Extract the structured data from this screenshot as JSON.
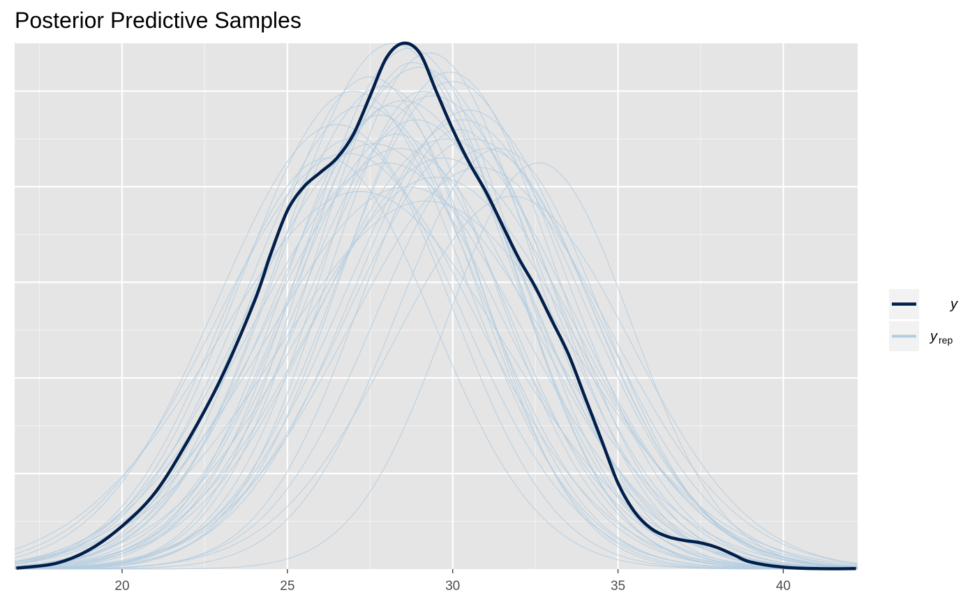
{
  "chart_data": {
    "type": "area",
    "title": "Posterior Predictive Samples",
    "xlabel": "",
    "ylabel": "",
    "xlim": [
      16.75,
      42.25
    ],
    "ylim": [
      0,
      1.1
    ],
    "x_ticks": [
      20,
      25,
      30,
      35,
      40
    ],
    "x_tick_labels": [
      "20",
      "25",
      "30",
      "35",
      "40"
    ],
    "y_axis_labels_shown": false,
    "grid": true,
    "legend_position": "right",
    "legend": [
      {
        "key": "y",
        "label": "y",
        "subscript": "",
        "color": "#011f4b"
      },
      {
        "key": "yrep",
        "label": "y",
        "subscript": "rep",
        "color": "#b3cde0"
      }
    ],
    "observed": {
      "name": "y",
      "color": "#011f4b",
      "x": [
        16.8,
        18,
        19,
        20,
        21,
        22,
        23,
        24,
        24.5,
        25,
        25.5,
        26,
        26.5,
        27,
        27.5,
        28,
        28.5,
        29,
        29.5,
        30,
        30.5,
        31,
        31.5,
        32,
        32.5,
        33,
        33.5,
        34,
        34.5,
        35,
        35.5,
        36,
        36.5,
        37,
        37.5,
        38,
        38.5,
        39,
        40,
        41,
        42.2
      ],
      "y": [
        0.002,
        0.012,
        0.04,
        0.09,
        0.16,
        0.27,
        0.4,
        0.56,
        0.66,
        0.75,
        0.8,
        0.83,
        0.86,
        0.91,
        0.99,
        1.07,
        1.1,
        1.08,
        1.0,
        0.92,
        0.85,
        0.79,
        0.72,
        0.65,
        0.59,
        0.52,
        0.45,
        0.36,
        0.27,
        0.18,
        0.12,
        0.085,
        0.068,
        0.06,
        0.055,
        0.045,
        0.03,
        0.015,
        0.004,
        0.001,
        0.001
      ]
    },
    "replicates_color": "#b3cde0",
    "replicates": [
      {
        "peak": 28.2,
        "sd": 3.4,
        "height": 1.1
      },
      {
        "peak": 29.0,
        "sd": 3.6,
        "height": 1.05
      },
      {
        "peak": 27.5,
        "sd": 3.2,
        "height": 1.03
      },
      {
        "peak": 30.5,
        "sd": 3.5,
        "height": 0.96
      },
      {
        "peak": 28.8,
        "sd": 3.0,
        "height": 1.06
      },
      {
        "peak": 27.0,
        "sd": 3.4,
        "height": 1.0
      },
      {
        "peak": 29.8,
        "sd": 3.8,
        "height": 0.9
      },
      {
        "peak": 28.0,
        "sd": 4.0,
        "height": 0.85
      },
      {
        "peak": 26.5,
        "sd": 3.6,
        "height": 0.93
      },
      {
        "peak": 31.0,
        "sd": 3.3,
        "height": 0.88
      },
      {
        "peak": 29.3,
        "sd": 3.1,
        "height": 1.08
      },
      {
        "peak": 28.5,
        "sd": 3.7,
        "height": 0.98
      },
      {
        "peak": 27.8,
        "sd": 3.0,
        "height": 0.95
      },
      {
        "peak": 30.0,
        "sd": 3.4,
        "height": 1.02
      },
      {
        "peak": 29.5,
        "sd": 4.1,
        "height": 0.82
      },
      {
        "peak": 28.3,
        "sd": 3.3,
        "height": 0.91
      },
      {
        "peak": 26.8,
        "sd": 3.9,
        "height": 0.87
      },
      {
        "peak": 30.8,
        "sd": 3.9,
        "height": 0.84
      },
      {
        "peak": 29.1,
        "sd": 2.9,
        "height": 1.0
      },
      {
        "peak": 27.3,
        "sd": 3.5,
        "height": 0.97
      },
      {
        "peak": 31.8,
        "sd": 3.6,
        "height": 0.78
      },
      {
        "peak": 28.9,
        "sd": 3.5,
        "height": 0.94
      },
      {
        "peak": 29.9,
        "sd": 3.2,
        "height": 1.04
      },
      {
        "peak": 27.6,
        "sd": 3.8,
        "height": 0.89
      },
      {
        "peak": 30.2,
        "sd": 3.0,
        "height": 0.92
      },
      {
        "peak": 28.6,
        "sd": 4.2,
        "height": 0.8
      },
      {
        "peak": 26.2,
        "sd": 3.2,
        "height": 0.86
      },
      {
        "peak": 29.4,
        "sd": 3.6,
        "height": 0.99
      },
      {
        "peak": 32.6,
        "sd": 2.8,
        "height": 0.85
      },
      {
        "peak": 27.9,
        "sd": 3.3,
        "height": 1.01
      },
      {
        "peak": 30.6,
        "sd": 3.7,
        "height": 0.9
      },
      {
        "peak": 28.1,
        "sd": 2.8,
        "height": 0.97
      },
      {
        "peak": 29.7,
        "sd": 3.9,
        "height": 0.86
      },
      {
        "peak": 27.2,
        "sd": 4.3,
        "height": 0.79
      },
      {
        "peak": 31.4,
        "sd": 3.1,
        "height": 0.88
      },
      {
        "peak": 28.7,
        "sd": 3.2,
        "height": 1.09
      },
      {
        "peak": 29.2,
        "sd": 4.4,
        "height": 0.77
      },
      {
        "peak": 26.9,
        "sd": 3.1,
        "height": 0.9
      },
      {
        "peak": 30.3,
        "sd": 3.6,
        "height": 0.94
      },
      {
        "peak": 28.4,
        "sd": 3.9,
        "height": 0.88
      }
    ]
  }
}
